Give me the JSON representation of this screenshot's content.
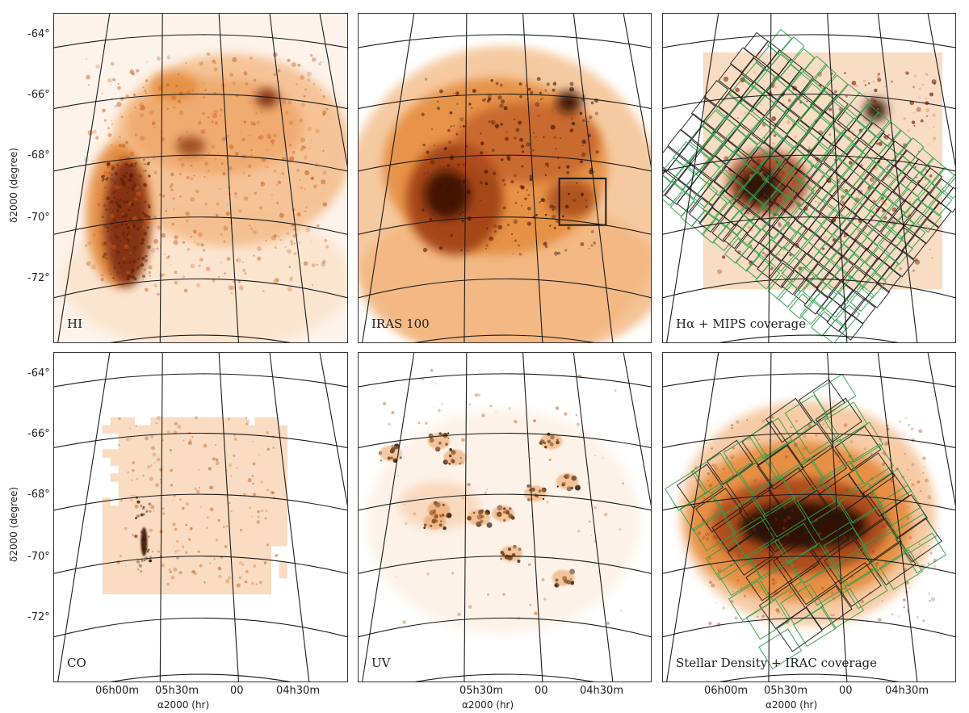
{
  "panels": [
    {
      "label": "HI",
      "type": "hi"
    },
    {
      "label": "IRAS 100",
      "type": "iras"
    },
    {
      "label": "Hα + MIPS coverage",
      "type": "halpha"
    },
    {
      "label": "CO",
      "type": "co"
    },
    {
      "label": "UV",
      "type": "uv"
    },
    {
      "label": "Stellar Density + IRAC coverage",
      "type": "stellar"
    }
  ],
  "axes": {
    "dec_ticks": [
      "-64°",
      "-66°",
      "-68°",
      "-70°",
      "-72°"
    ],
    "ra_ticks": [
      "06h00m",
      "05h30m",
      "00",
      "04h30m"
    ],
    "ylabel": "δ2000 (degree)",
    "xlabel": "α2000 (hr)"
  },
  "colors": {
    "ink": "#2a0f04",
    "low": "#fbe3cc",
    "mid": "#e48a3a",
    "high": "#7a2a08",
    "coverage_black": "#222222",
    "coverage_green": "#2e9f4f"
  }
}
